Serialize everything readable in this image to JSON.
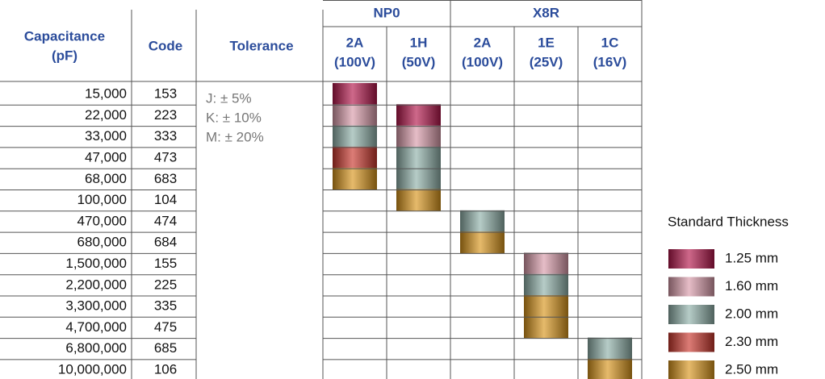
{
  "header": {
    "capacitance": [
      "Capacitance",
      "(pF)"
    ],
    "code": "Code",
    "tolerance": "Tolerance",
    "groups": [
      {
        "name": "NP0",
        "columns": [
          {
            "rating": "2A",
            "voltage": "(100V)"
          },
          {
            "rating": "1H",
            "voltage": "(50V)"
          }
        ]
      },
      {
        "name": "X8R",
        "columns": [
          {
            "rating": "2A",
            "voltage": "(100V)"
          },
          {
            "rating": "1E",
            "voltage": "(25V)"
          },
          {
            "rating": "1C",
            "voltage": "(16V)"
          }
        ]
      }
    ]
  },
  "rows": [
    [
      "15,000",
      "153"
    ],
    [
      "22,000",
      "223"
    ],
    [
      "33,000",
      "333"
    ],
    [
      "47,000",
      "473"
    ],
    [
      "68,000",
      "683"
    ],
    [
      "100,000",
      "104"
    ],
    [
      "470,000",
      "474"
    ],
    [
      "680,000",
      "684"
    ],
    [
      "1,500,000",
      "155"
    ],
    [
      "2,200,000",
      "225"
    ],
    [
      "3,300,000",
      "335"
    ],
    [
      "4,700,000",
      "475"
    ],
    [
      "6,800,000",
      "685"
    ],
    [
      "10,000,000",
      "106"
    ]
  ],
  "tolerances": [
    "J: ± 5%",
    "K: ± 10%",
    "M: ± 20%"
  ],
  "cells": [
    [
      "1.25 mm",
      "1.60 mm",
      "2.00 mm",
      "2.30 mm",
      "2.50 mm",
      null,
      null,
      null,
      null,
      null,
      null,
      null,
      null,
      null
    ],
    [
      null,
      "1.25 mm",
      "1.60 mm",
      "2.00 mm",
      "2.00 mm",
      "2.50 mm",
      null,
      null,
      null,
      null,
      null,
      null,
      null,
      null
    ],
    [
      null,
      null,
      null,
      null,
      null,
      null,
      "2.00 mm",
      "2.50 mm",
      null,
      null,
      null,
      null,
      null,
      null
    ],
    [
      null,
      null,
      null,
      null,
      null,
      null,
      null,
      null,
      "1.60 mm",
      "2.00 mm",
      "2.50 mm",
      "2.50 mm",
      null,
      null
    ],
    [
      null,
      null,
      null,
      null,
      null,
      null,
      null,
      null,
      null,
      null,
      null,
      null,
      "2.00 mm",
      "2.50 mm"
    ]
  ],
  "legend": {
    "title": "Standard Thickness",
    "items": [
      {
        "label": "1.25 mm",
        "color": "#b3164b"
      },
      {
        "label": "1.60 mm",
        "color": "#d99aa9"
      },
      {
        "label": "2.00 mm",
        "color": "#8fb1a9"
      },
      {
        "label": "2.30 mm",
        "color": "#c9362c"
      },
      {
        "label": "2.50 mm",
        "color": "#d8951b"
      }
    ]
  }
}
